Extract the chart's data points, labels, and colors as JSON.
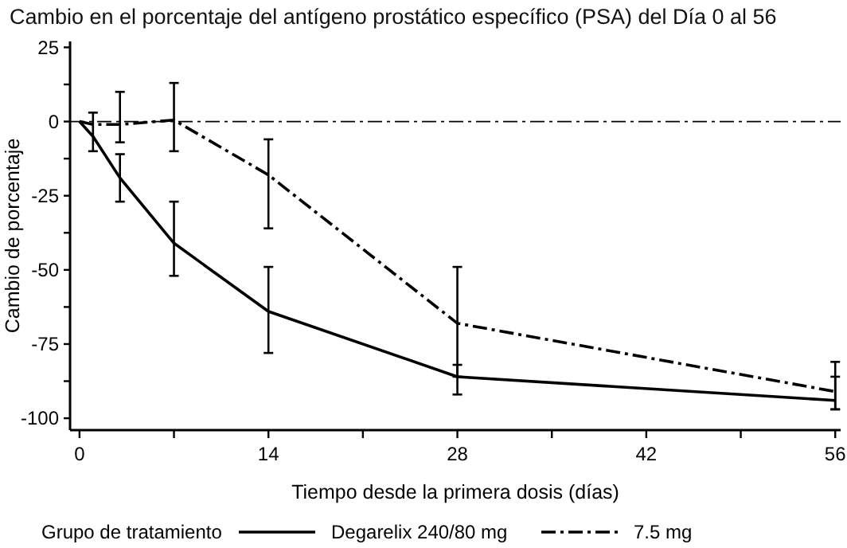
{
  "chart_data": {
    "type": "line",
    "title": "Cambio en el porcentaje del antígeno prostático específico (PSA) del Día 0 al 56",
    "xlabel": "Tiempo desde la primera dosis (días)",
    "ylabel": "Cambio de porcentaje",
    "legend_title": "Grupo de tratamiento",
    "legend": "bottom",
    "marker": "none",
    "grid": false,
    "xlim": [
      -0.7,
      56.4
    ],
    "xticks": [
      0,
      {
        "value": 7,
        "label": null
      },
      14,
      {
        "value": 21,
        "label": null
      },
      28,
      {
        "value": 35,
        "label": null
      },
      42,
      {
        "value": 49,
        "label": null
      },
      56
    ],
    "ylim": [
      -104,
      27
    ],
    "yticks": [
      -100,
      {
        "value": -87.5,
        "label": null
      },
      -75,
      {
        "value": -62.5,
        "label": null
      },
      -50,
      {
        "value": -37.5,
        "label": null
      },
      -25,
      {
        "value": -12.5,
        "label": null
      },
      0,
      {
        "value": 12.5,
        "label": null
      },
      25
    ],
    "ref_lines": [
      {
        "axis": "y",
        "value": 0,
        "line_style": "dashed",
        "color": "#000000"
      }
    ],
    "series": [
      {
        "name": "Degarelix 240/80 mg",
        "color": "#000000",
        "line_style": "solid",
        "x": [
          0,
          1,
          3,
          7,
          14,
          28,
          56
        ],
        "values": [
          0,
          -5,
          -19,
          -41,
          -64,
          -86,
          -94
        ],
        "errors": [
          null,
          [
            -10,
            3
          ],
          [
            -27,
            -11
          ],
          [
            -52,
            -27
          ],
          [
            -78,
            -49
          ],
          [
            -92,
            -82
          ],
          [
            -97,
            -86
          ]
        ]
      },
      {
        "name": "7.5 mg",
        "color": "#000000",
        "line_style": "dashed",
        "x": [
          0,
          1,
          3,
          7,
          14,
          28,
          56
        ],
        "values": [
          0,
          -1,
          -1,
          0.5,
          -18,
          -68,
          -91
        ],
        "errors": [
          null,
          null,
          [
            -7,
            10
          ],
          [
            -10,
            13
          ],
          [
            -36,
            -6
          ],
          [
            -86,
            -49
          ],
          [
            -97,
            -81
          ]
        ]
      }
    ]
  }
}
